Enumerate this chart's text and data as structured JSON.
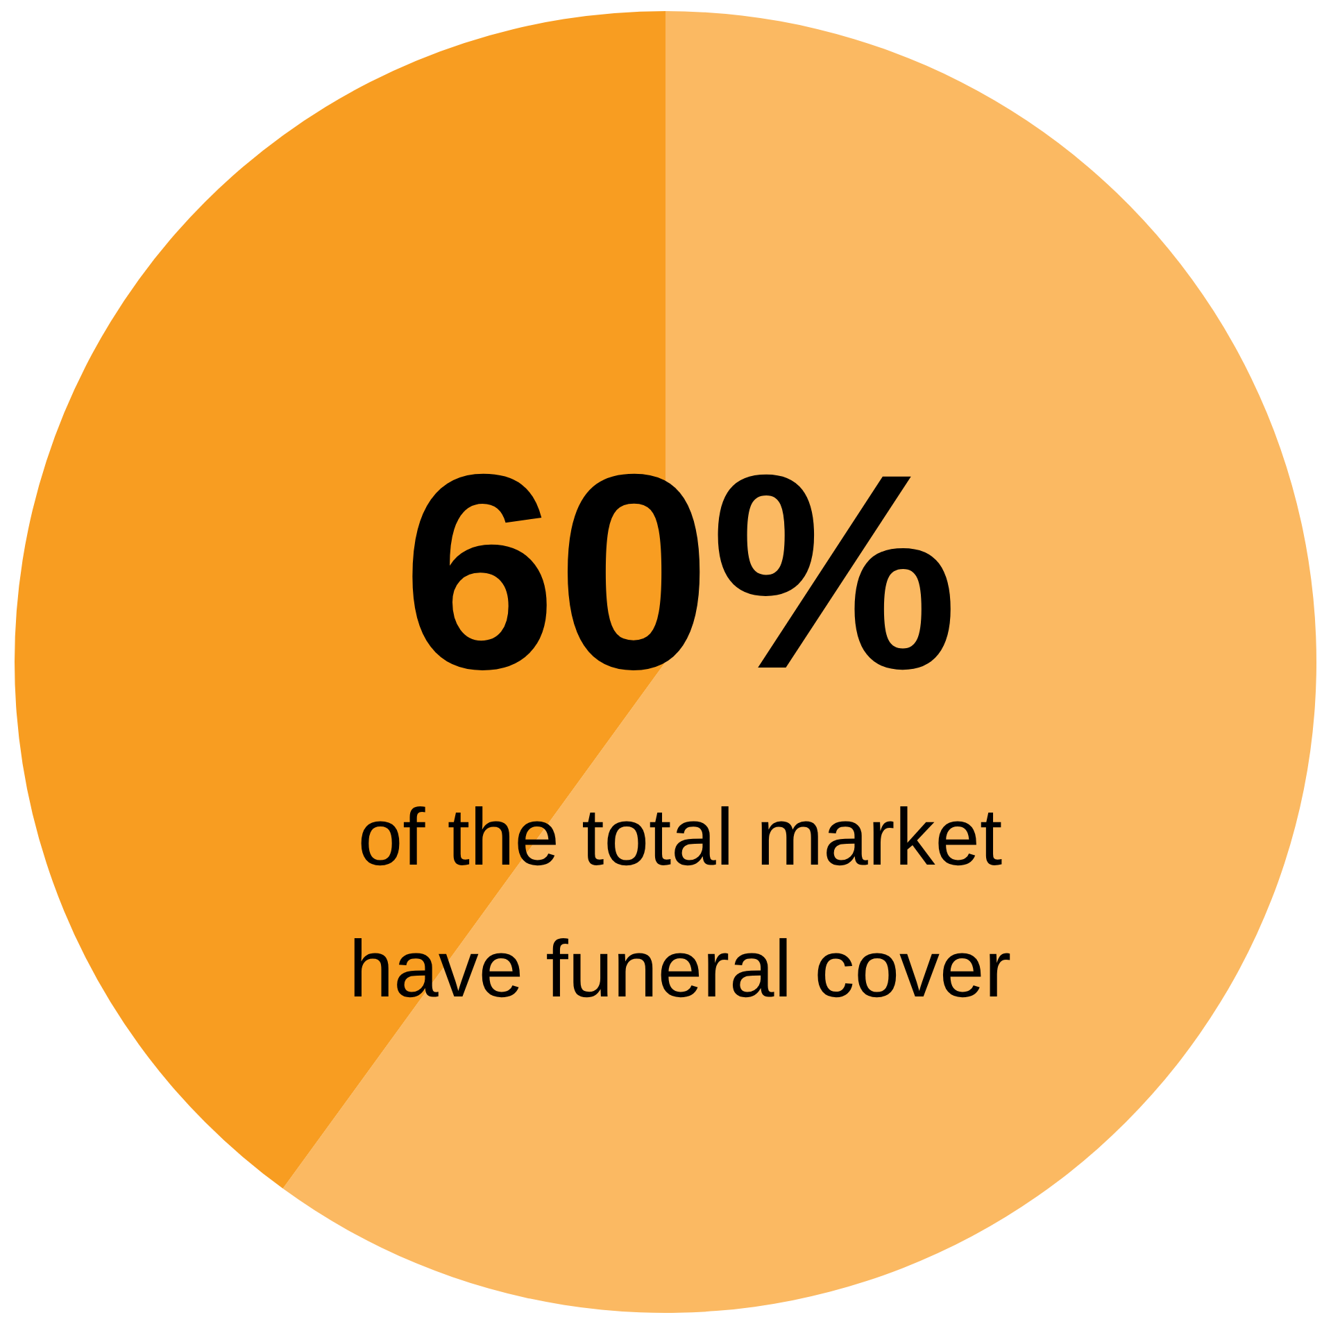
{
  "chart_data": {
    "type": "pie",
    "categories": [
      null,
      null
    ],
    "values": [
      60,
      40
    ],
    "colors": [
      "#fbb962",
      "#f89d21"
    ],
    "value_labels": [
      "60%",
      null
    ],
    "annotations": [
      "of the total market",
      "have funeral cover"
    ]
  }
}
